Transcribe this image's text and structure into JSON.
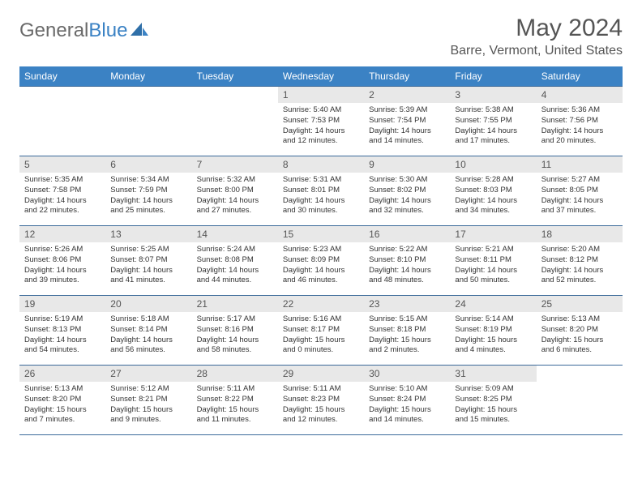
{
  "logo": {
    "general": "General",
    "blue": "Blue"
  },
  "title": "May 2024",
  "location": "Barre, Vermont, United States",
  "colors": {
    "header_bg": "#3b82c4",
    "border": "#3b6a9a",
    "daynum_bg": "#e8e8e8",
    "text": "#333333",
    "logo_gray": "#6a6a6a"
  },
  "weekdays": [
    "Sunday",
    "Monday",
    "Tuesday",
    "Wednesday",
    "Thursday",
    "Friday",
    "Saturday"
  ],
  "weeks": [
    [
      {
        "n": "",
        "sr": "",
        "ss": "",
        "dl": ""
      },
      {
        "n": "",
        "sr": "",
        "ss": "",
        "dl": ""
      },
      {
        "n": "",
        "sr": "",
        "ss": "",
        "dl": ""
      },
      {
        "n": "1",
        "sr": "5:40 AM",
        "ss": "7:53 PM",
        "dl": "14 hours and 12 minutes."
      },
      {
        "n": "2",
        "sr": "5:39 AM",
        "ss": "7:54 PM",
        "dl": "14 hours and 14 minutes."
      },
      {
        "n": "3",
        "sr": "5:38 AM",
        "ss": "7:55 PM",
        "dl": "14 hours and 17 minutes."
      },
      {
        "n": "4",
        "sr": "5:36 AM",
        "ss": "7:56 PM",
        "dl": "14 hours and 20 minutes."
      }
    ],
    [
      {
        "n": "5",
        "sr": "5:35 AM",
        "ss": "7:58 PM",
        "dl": "14 hours and 22 minutes."
      },
      {
        "n": "6",
        "sr": "5:34 AM",
        "ss": "7:59 PM",
        "dl": "14 hours and 25 minutes."
      },
      {
        "n": "7",
        "sr": "5:32 AM",
        "ss": "8:00 PM",
        "dl": "14 hours and 27 minutes."
      },
      {
        "n": "8",
        "sr": "5:31 AM",
        "ss": "8:01 PM",
        "dl": "14 hours and 30 minutes."
      },
      {
        "n": "9",
        "sr": "5:30 AM",
        "ss": "8:02 PM",
        "dl": "14 hours and 32 minutes."
      },
      {
        "n": "10",
        "sr": "5:28 AM",
        "ss": "8:03 PM",
        "dl": "14 hours and 34 minutes."
      },
      {
        "n": "11",
        "sr": "5:27 AM",
        "ss": "8:05 PM",
        "dl": "14 hours and 37 minutes."
      }
    ],
    [
      {
        "n": "12",
        "sr": "5:26 AM",
        "ss": "8:06 PM",
        "dl": "14 hours and 39 minutes."
      },
      {
        "n": "13",
        "sr": "5:25 AM",
        "ss": "8:07 PM",
        "dl": "14 hours and 41 minutes."
      },
      {
        "n": "14",
        "sr": "5:24 AM",
        "ss": "8:08 PM",
        "dl": "14 hours and 44 minutes."
      },
      {
        "n": "15",
        "sr": "5:23 AM",
        "ss": "8:09 PM",
        "dl": "14 hours and 46 minutes."
      },
      {
        "n": "16",
        "sr": "5:22 AM",
        "ss": "8:10 PM",
        "dl": "14 hours and 48 minutes."
      },
      {
        "n": "17",
        "sr": "5:21 AM",
        "ss": "8:11 PM",
        "dl": "14 hours and 50 minutes."
      },
      {
        "n": "18",
        "sr": "5:20 AM",
        "ss": "8:12 PM",
        "dl": "14 hours and 52 minutes."
      }
    ],
    [
      {
        "n": "19",
        "sr": "5:19 AM",
        "ss": "8:13 PM",
        "dl": "14 hours and 54 minutes."
      },
      {
        "n": "20",
        "sr": "5:18 AM",
        "ss": "8:14 PM",
        "dl": "14 hours and 56 minutes."
      },
      {
        "n": "21",
        "sr": "5:17 AM",
        "ss": "8:16 PM",
        "dl": "14 hours and 58 minutes."
      },
      {
        "n": "22",
        "sr": "5:16 AM",
        "ss": "8:17 PM",
        "dl": "15 hours and 0 minutes."
      },
      {
        "n": "23",
        "sr": "5:15 AM",
        "ss": "8:18 PM",
        "dl": "15 hours and 2 minutes."
      },
      {
        "n": "24",
        "sr": "5:14 AM",
        "ss": "8:19 PM",
        "dl": "15 hours and 4 minutes."
      },
      {
        "n": "25",
        "sr": "5:13 AM",
        "ss": "8:20 PM",
        "dl": "15 hours and 6 minutes."
      }
    ],
    [
      {
        "n": "26",
        "sr": "5:13 AM",
        "ss": "8:20 PM",
        "dl": "15 hours and 7 minutes."
      },
      {
        "n": "27",
        "sr": "5:12 AM",
        "ss": "8:21 PM",
        "dl": "15 hours and 9 minutes."
      },
      {
        "n": "28",
        "sr": "5:11 AM",
        "ss": "8:22 PM",
        "dl": "15 hours and 11 minutes."
      },
      {
        "n": "29",
        "sr": "5:11 AM",
        "ss": "8:23 PM",
        "dl": "15 hours and 12 minutes."
      },
      {
        "n": "30",
        "sr": "5:10 AM",
        "ss": "8:24 PM",
        "dl": "15 hours and 14 minutes."
      },
      {
        "n": "31",
        "sr": "5:09 AM",
        "ss": "8:25 PM",
        "dl": "15 hours and 15 minutes."
      },
      {
        "n": "",
        "sr": "",
        "ss": "",
        "dl": ""
      }
    ]
  ]
}
